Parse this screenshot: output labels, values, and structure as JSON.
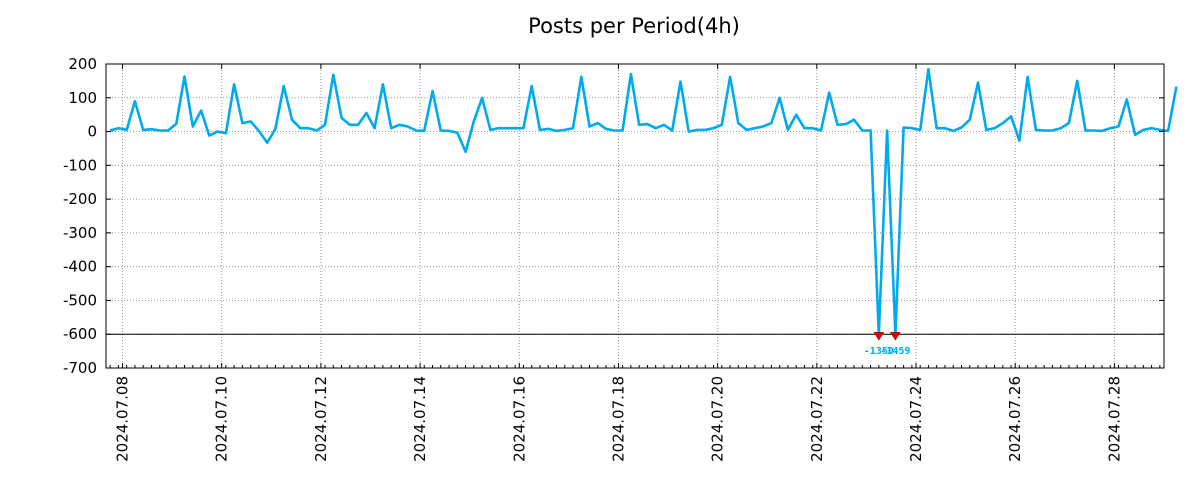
{
  "chart_data": {
    "type": "line",
    "title": "Posts per Period(4h)",
    "xlabel": "",
    "ylabel": "",
    "grid": true,
    "ylim": [
      -700,
      200
    ],
    "yticks": [
      200,
      100,
      0,
      -100,
      -200,
      -300,
      -400,
      -500,
      -600,
      -700
    ],
    "ytick_labels": [
      "200",
      "100",
      "0",
      "-100",
      "-200",
      "-300",
      "-400",
      "-500",
      "-600",
      "-700"
    ],
    "x_start": "2024.07.07 18:00",
    "x_step_hours": 4,
    "xlim_index": [
      -0.5,
      127.5
    ],
    "xticks": [
      {
        "label": "2024.07.08",
        "index": 1.5
      },
      {
        "label": "2024.07.10",
        "index": 13.5
      },
      {
        "label": "2024.07.12",
        "index": 25.5
      },
      {
        "label": "2024.07.14",
        "index": 37.5
      },
      {
        "label": "2024.07.16",
        "index": 49.5
      },
      {
        "label": "2024.07.18",
        "index": 61.5
      },
      {
        "label": "2024.07.20",
        "index": 73.5
      },
      {
        "label": "2024.07.22",
        "index": 85.5
      },
      {
        "label": "2024.07.24",
        "index": 97.5
      },
      {
        "label": "2024.07.26",
        "index": 109.5
      },
      {
        "label": "2024.07.28",
        "index": 121.5
      }
    ],
    "clip_value": -600,
    "clip_note": "values below -600 are clipped and labeled",
    "series": [
      {
        "name": "Posts",
        "color": "#00aaee",
        "values": [
          3,
          10,
          5,
          90,
          5,
          7,
          3,
          3,
          23,
          163,
          15,
          62,
          -12,
          0,
          -5,
          140,
          25,
          30,
          2,
          -33,
          8,
          135,
          35,
          10,
          10,
          3,
          20,
          168,
          40,
          20,
          20,
          55,
          10,
          140,
          10,
          20,
          15,
          3,
          2,
          120,
          3,
          2,
          -3,
          -60,
          30,
          100,
          5,
          10,
          10,
          10,
          10,
          135,
          5,
          8,
          2,
          5,
          10,
          162,
          15,
          25,
          8,
          3,
          3,
          170,
          20,
          22,
          10,
          20,
          3,
          148,
          0,
          5,
          5,
          10,
          20,
          162,
          25,
          5,
          10,
          15,
          25,
          100,
          5,
          50,
          10,
          10,
          3,
          115,
          20,
          22,
          35,
          3,
          3,
          -1350,
          3,
          -1459,
          12,
          10,
          5,
          185,
          10,
          10,
          2,
          12,
          35,
          145,
          5,
          10,
          25,
          45,
          -27,
          162,
          5,
          3,
          3,
          10,
          25,
          150,
          3,
          3,
          2,
          10,
          15,
          95,
          -10,
          5,
          10,
          5,
          2,
          133
        ]
      }
    ],
    "clipped_points": [
      {
        "index": 93,
        "value": -1350,
        "label": "-1350"
      },
      {
        "index": 95,
        "value": -1459,
        "label": "-1459"
      }
    ]
  }
}
